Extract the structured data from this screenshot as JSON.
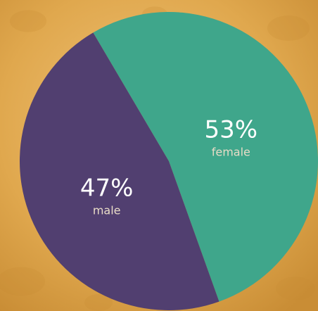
{
  "colors": {
    "background": "#e0a84e",
    "background_dark": "#c98d35",
    "background_light": "#efc176",
    "label_text": "#ffffff",
    "sublabel_text": "#e9dcc7"
  },
  "chart_data": {
    "type": "pie",
    "title": "",
    "slices": [
      {
        "label": "female",
        "value": 53,
        "display": "53%",
        "color": "#3fa68b"
      },
      {
        "label": "male",
        "value": 47,
        "display": "47%",
        "color": "#513f70"
      }
    ]
  }
}
